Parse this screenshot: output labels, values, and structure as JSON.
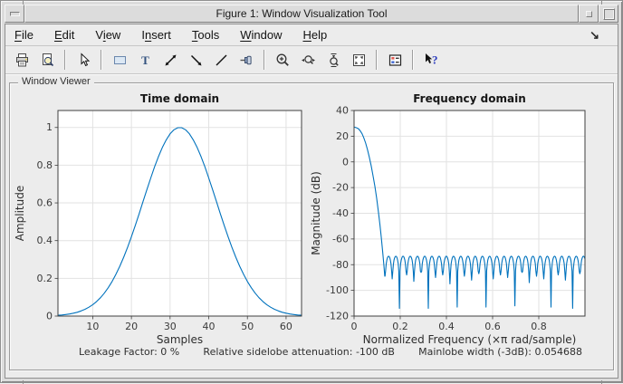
{
  "window": {
    "title": "Figure 1: Window Visualization Tool"
  },
  "menubar": {
    "items": [
      {
        "label": "File",
        "mnemonic_index": 0
      },
      {
        "label": "Edit",
        "mnemonic_index": 0
      },
      {
        "label": "View",
        "mnemonic_index": 1
      },
      {
        "label": "Insert",
        "mnemonic_index": 1
      },
      {
        "label": "Tools",
        "mnemonic_index": 0
      },
      {
        "label": "Window",
        "mnemonic_index": 0
      },
      {
        "label": "Help",
        "mnemonic_index": 0
      }
    ],
    "dock_arrow": "↘"
  },
  "toolbar": {
    "items": [
      "print",
      "print-preview",
      "|",
      "edit-plot",
      "|",
      "insert-rectangle",
      "insert-text",
      "insert-double-arrow",
      "insert-arrow",
      "insert-line",
      "pin-to-axes",
      "|",
      "zoom-in",
      "zoom-x",
      "zoom-y",
      "restore-view",
      "|",
      "legend",
      "|",
      "whats-this"
    ]
  },
  "panel": {
    "label": "Window Viewer"
  },
  "metrics": {
    "leakage": "Leakage Factor: 0 %",
    "sidelobe": "Relative sidelobe attenuation: -100 dB",
    "mainlobe": "Mainlobe width (-3dB): 0.054688"
  },
  "colors": {
    "line": "#0072bd",
    "grid": "#e2e2e2",
    "axis": "#4c4c4c",
    "bg": "#ececec"
  },
  "chart_data": [
    {
      "type": "line",
      "id": "time",
      "title": "Time domain",
      "xlabel": "Samples",
      "ylabel": "Amplitude",
      "xlim": [
        1,
        64
      ],
      "ylim": [
        0,
        1.09
      ],
      "xticks": [
        10,
        20,
        30,
        40,
        50,
        60
      ],
      "yticks": [
        0,
        0.2,
        0.4,
        0.6,
        0.8,
        1
      ],
      "grid": true,
      "series": {
        "kind": "samples",
        "x_start": 1,
        "values": [
          0.0041,
          0.0058,
          0.0081,
          0.0111,
          0.0152,
          0.0204,
          0.0272,
          0.0359,
          0.0469,
          0.0605,
          0.0771,
          0.0975,
          0.1216,
          0.1502,
          0.1833,
          0.2213,
          0.2642,
          0.3119,
          0.3643,
          0.4207,
          0.4806,
          0.5429,
          0.6065,
          0.6701,
          0.7323,
          0.7913,
          0.8457,
          0.8939,
          0.9344,
          0.966,
          0.9876,
          0.9986,
          0.9986,
          0.9876,
          0.966,
          0.9344,
          0.8939,
          0.8457,
          0.7913,
          0.7323,
          0.6701,
          0.6065,
          0.5429,
          0.4806,
          0.4207,
          0.3643,
          0.3119,
          0.2642,
          0.2213,
          0.1833,
          0.1502,
          0.1216,
          0.0975,
          0.0771,
          0.0605,
          0.0469,
          0.0359,
          0.0272,
          0.0204,
          0.0152,
          0.0111,
          0.0081,
          0.0058,
          0.0041
        ]
      }
    },
    {
      "type": "line",
      "id": "freq",
      "title": "Frequency domain",
      "xlabel": "Normalized Frequency  (×π rad/sample)",
      "ylabel": "Magnitude (dB)",
      "xlim": [
        0,
        1
      ],
      "ylim": [
        -120,
        40
      ],
      "xticks": [
        0,
        0.2,
        0.4,
        0.6,
        0.8
      ],
      "yticks": [
        40,
        20,
        0,
        -20,
        -40,
        -60,
        -80,
        -100,
        -120
      ],
      "grid": true,
      "series": {
        "kind": "freq-response",
        "peak_db": 27,
        "mainlobe": [
          [
            0,
            27
          ],
          [
            0.005,
            26.9
          ],
          [
            0.01,
            26.6
          ],
          [
            0.015,
            26.2
          ],
          [
            0.02,
            25.6
          ],
          [
            0.027,
            24.1
          ],
          [
            0.035,
            21.8
          ],
          [
            0.042,
            18.8
          ],
          [
            0.05,
            14.6
          ],
          [
            0.058,
            9.6
          ],
          [
            0.066,
            3.8
          ],
          [
            0.074,
            -3.0
          ],
          [
            0.082,
            -10.6
          ],
          [
            0.09,
            -19.0
          ],
          [
            0.098,
            -28.5
          ],
          [
            0.106,
            -39.5
          ],
          [
            0.112,
            -49.0
          ],
          [
            0.118,
            -59.0
          ],
          [
            0.124,
            -70.0
          ],
          [
            0.129,
            -80.0
          ],
          [
            0.133,
            -89.0
          ]
        ],
        "sidelobe_top_db": -73.4,
        "lobe_width": 0.03125,
        "lobes_start": 0.134,
        "null_depths_db": [
          -89,
          -91,
          -114,
          -88,
          -93,
          -86,
          -114,
          -90,
          -88,
          -95,
          -113,
          -89,
          -92,
          -87,
          -113,
          -91,
          -88,
          -90,
          -112,
          -86,
          -94,
          -89,
          -91,
          -113,
          -88,
          -92,
          -114,
          -87
        ]
      }
    }
  ]
}
